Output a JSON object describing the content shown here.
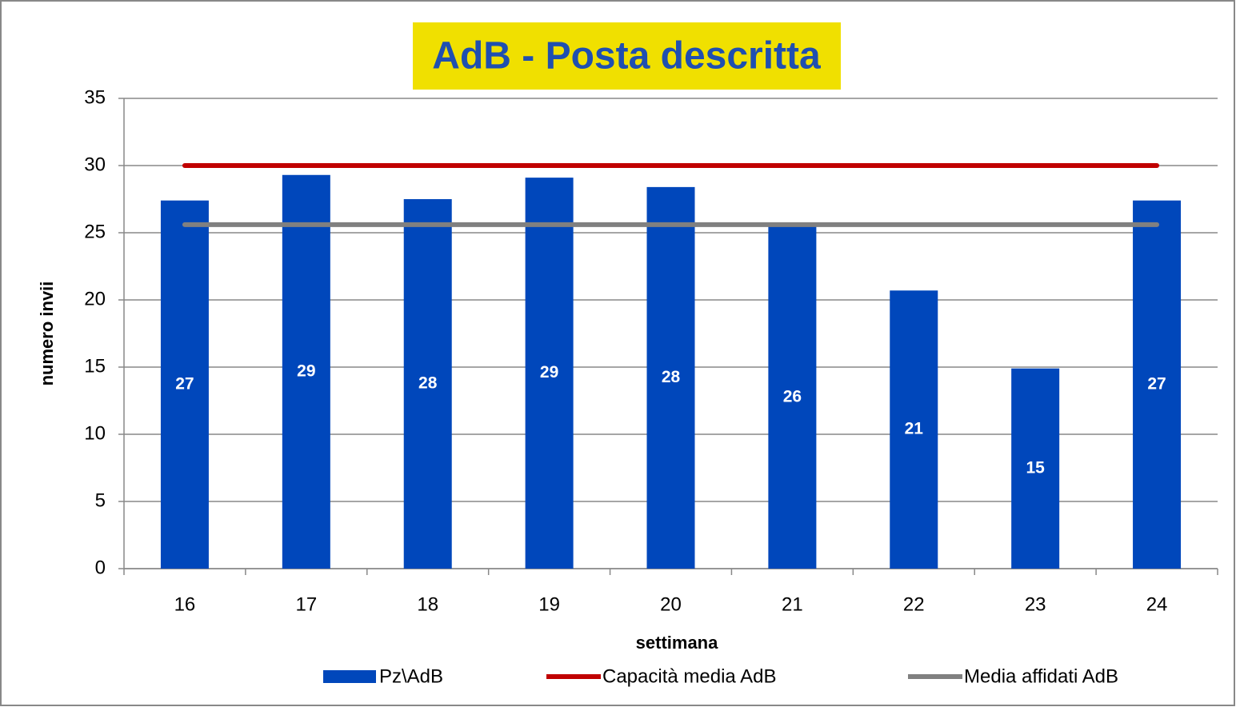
{
  "chart_data": {
    "type": "bar",
    "title": "AdB - Posta descritta",
    "x_label": "settimana",
    "y_label": "numero invii",
    "categories": [
      "16",
      "17",
      "18",
      "19",
      "20",
      "21",
      "22",
      "23",
      "24"
    ],
    "series": [
      {
        "name": "Pz\\AdB",
        "type": "bar",
        "color": "#0047bb",
        "values": [
          27.4,
          29.3,
          27.5,
          29.1,
          28.4,
          25.5,
          20.7,
          14.9,
          27.4
        ],
        "value_labels": [
          "27",
          "29",
          "28",
          "29",
          "28",
          "26",
          "21",
          "15",
          "27"
        ]
      },
      {
        "name": "Capacità media AdB",
        "type": "line",
        "color": "#c00000",
        "values": [
          30,
          30,
          30,
          30,
          30,
          30,
          30,
          30,
          30
        ]
      },
      {
        "name": "Media affidati AdB",
        "type": "line",
        "color": "#808080",
        "values": [
          25.6,
          25.6,
          25.6,
          25.6,
          25.6,
          25.6,
          25.6,
          25.6,
          25.6
        ]
      }
    ],
    "ylim": [
      0,
      35
    ],
    "yticks": [
      0,
      5,
      10,
      15,
      20,
      25,
      30,
      35
    ],
    "grid": true
  }
}
